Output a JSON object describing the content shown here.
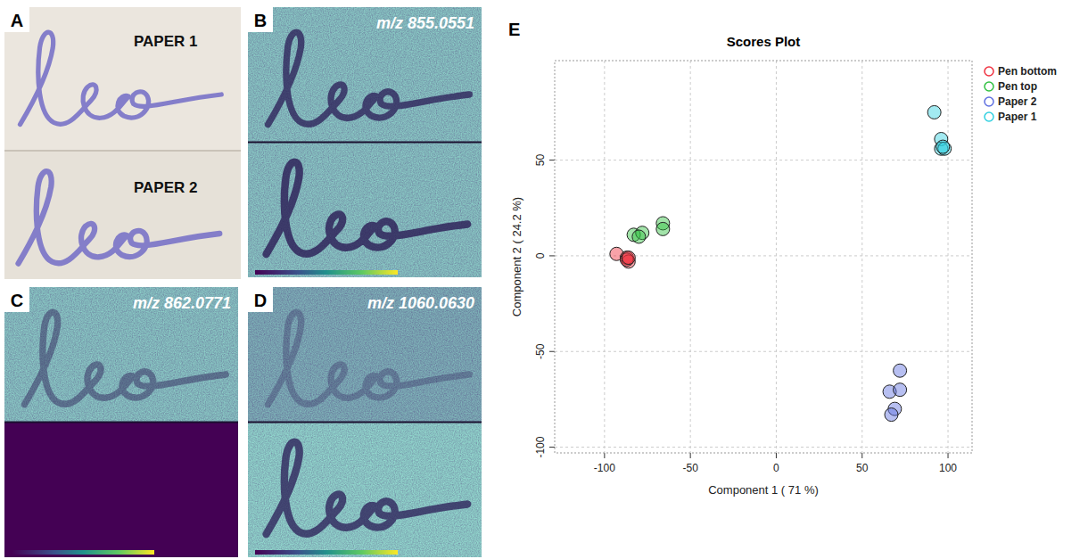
{
  "panels": [
    {
      "letter": "A",
      "labels": [
        "PAPER 1",
        "PAPER 2"
      ]
    },
    {
      "letter": "B",
      "annotation": "m/z 855.0551"
    },
    {
      "letter": "C",
      "annotation": "m/z 862.0771"
    },
    {
      "letter": "D",
      "annotation": "m/z 1060.0630"
    }
  ],
  "chart_letter": "E",
  "chart_data": {
    "type": "scatter",
    "title": "Scores Plot",
    "x_label": "Component 1 ( 71 %)",
    "y_label": "Component 2 ( 24.2 %)",
    "xlim": [
      -129,
      114
    ],
    "ylim": [
      -103,
      102
    ],
    "xticks": [
      -100,
      -50,
      0,
      50,
      100
    ],
    "yticks": [
      -100,
      -50,
      0,
      50
    ],
    "grid": true,
    "legend": "right",
    "marker": "circle",
    "series": [
      {
        "name": "Pen bottom",
        "color": "#f0303f",
        "x": [
          -93,
          -87,
          -86,
          -87,
          -86
        ],
        "y": [
          1,
          -1,
          -3,
          -2,
          -1
        ]
      },
      {
        "name": "Pen top",
        "color": "#30c040",
        "x": [
          -83,
          -78,
          -66,
          -66,
          -80
        ],
        "y": [
          11,
          12,
          17,
          14,
          10
        ]
      },
      {
        "name": "Paper 2",
        "color": "#6070e0",
        "x": [
          66,
          72,
          72,
          69,
          67
        ],
        "y": [
          -71,
          -60,
          -70,
          -80,
          -83
        ]
      },
      {
        "name": "Paper 1",
        "color": "#30d0e0",
        "x": [
          92,
          96,
          96,
          98,
          97
        ],
        "y": [
          75,
          61,
          56,
          56,
          57
        ]
      }
    ]
  }
}
